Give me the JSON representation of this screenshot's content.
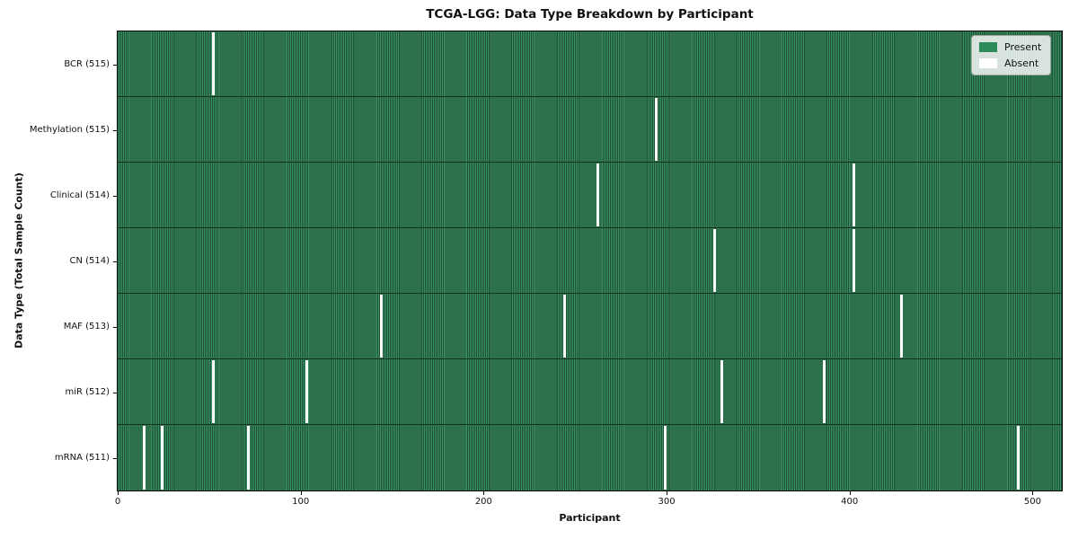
{
  "figure": {
    "title": "TCGA-LGG: Data Type Breakdown by Participant",
    "xlabel": "Participant",
    "ylabel": "Data Type (Total Sample Count)"
  },
  "chart_data": {
    "type": "heatmap",
    "title": "TCGA-LGG: Data Type Breakdown by Participant",
    "xlabel": "Participant",
    "ylabel": "Data Type (Total Sample Count)",
    "xlim": [
      0,
      516
    ],
    "x_ticks": [
      0,
      100,
      200,
      300,
      400,
      500
    ],
    "total_participants": 516,
    "present_color": "#2e8b57",
    "absent_color": "#ffffff",
    "grid": false,
    "legend_position": "upper right",
    "rows": [
      {
        "data_type": "BCR",
        "label": "BCR (515)",
        "present_count": 515,
        "absent_participants": [
          52
        ]
      },
      {
        "data_type": "Methylation",
        "label": "Methylation (515)",
        "present_count": 515,
        "absent_participants": [
          294
        ]
      },
      {
        "data_type": "Clinical",
        "label": "Clinical (514)",
        "present_count": 514,
        "absent_participants": [
          262,
          402
        ]
      },
      {
        "data_type": "CN",
        "label": "CN (514)",
        "present_count": 514,
        "absent_participants": [
          326,
          402
        ]
      },
      {
        "data_type": "MAF",
        "label": "MAF (513)",
        "present_count": 513,
        "absent_participants": [
          144,
          244,
          428
        ]
      },
      {
        "data_type": "miR",
        "label": "miR (512)",
        "present_count": 512,
        "absent_participants": [
          52,
          103,
          330,
          386
        ]
      },
      {
        "data_type": "mRNA",
        "label": "mRNA (511)",
        "present_count": 511,
        "absent_participants": [
          14,
          24,
          71,
          299,
          492
        ]
      }
    ],
    "legend": [
      {
        "label": "Present",
        "color": "#2e8b57"
      },
      {
        "label": "Absent",
        "color": "#ffffff"
      }
    ]
  }
}
